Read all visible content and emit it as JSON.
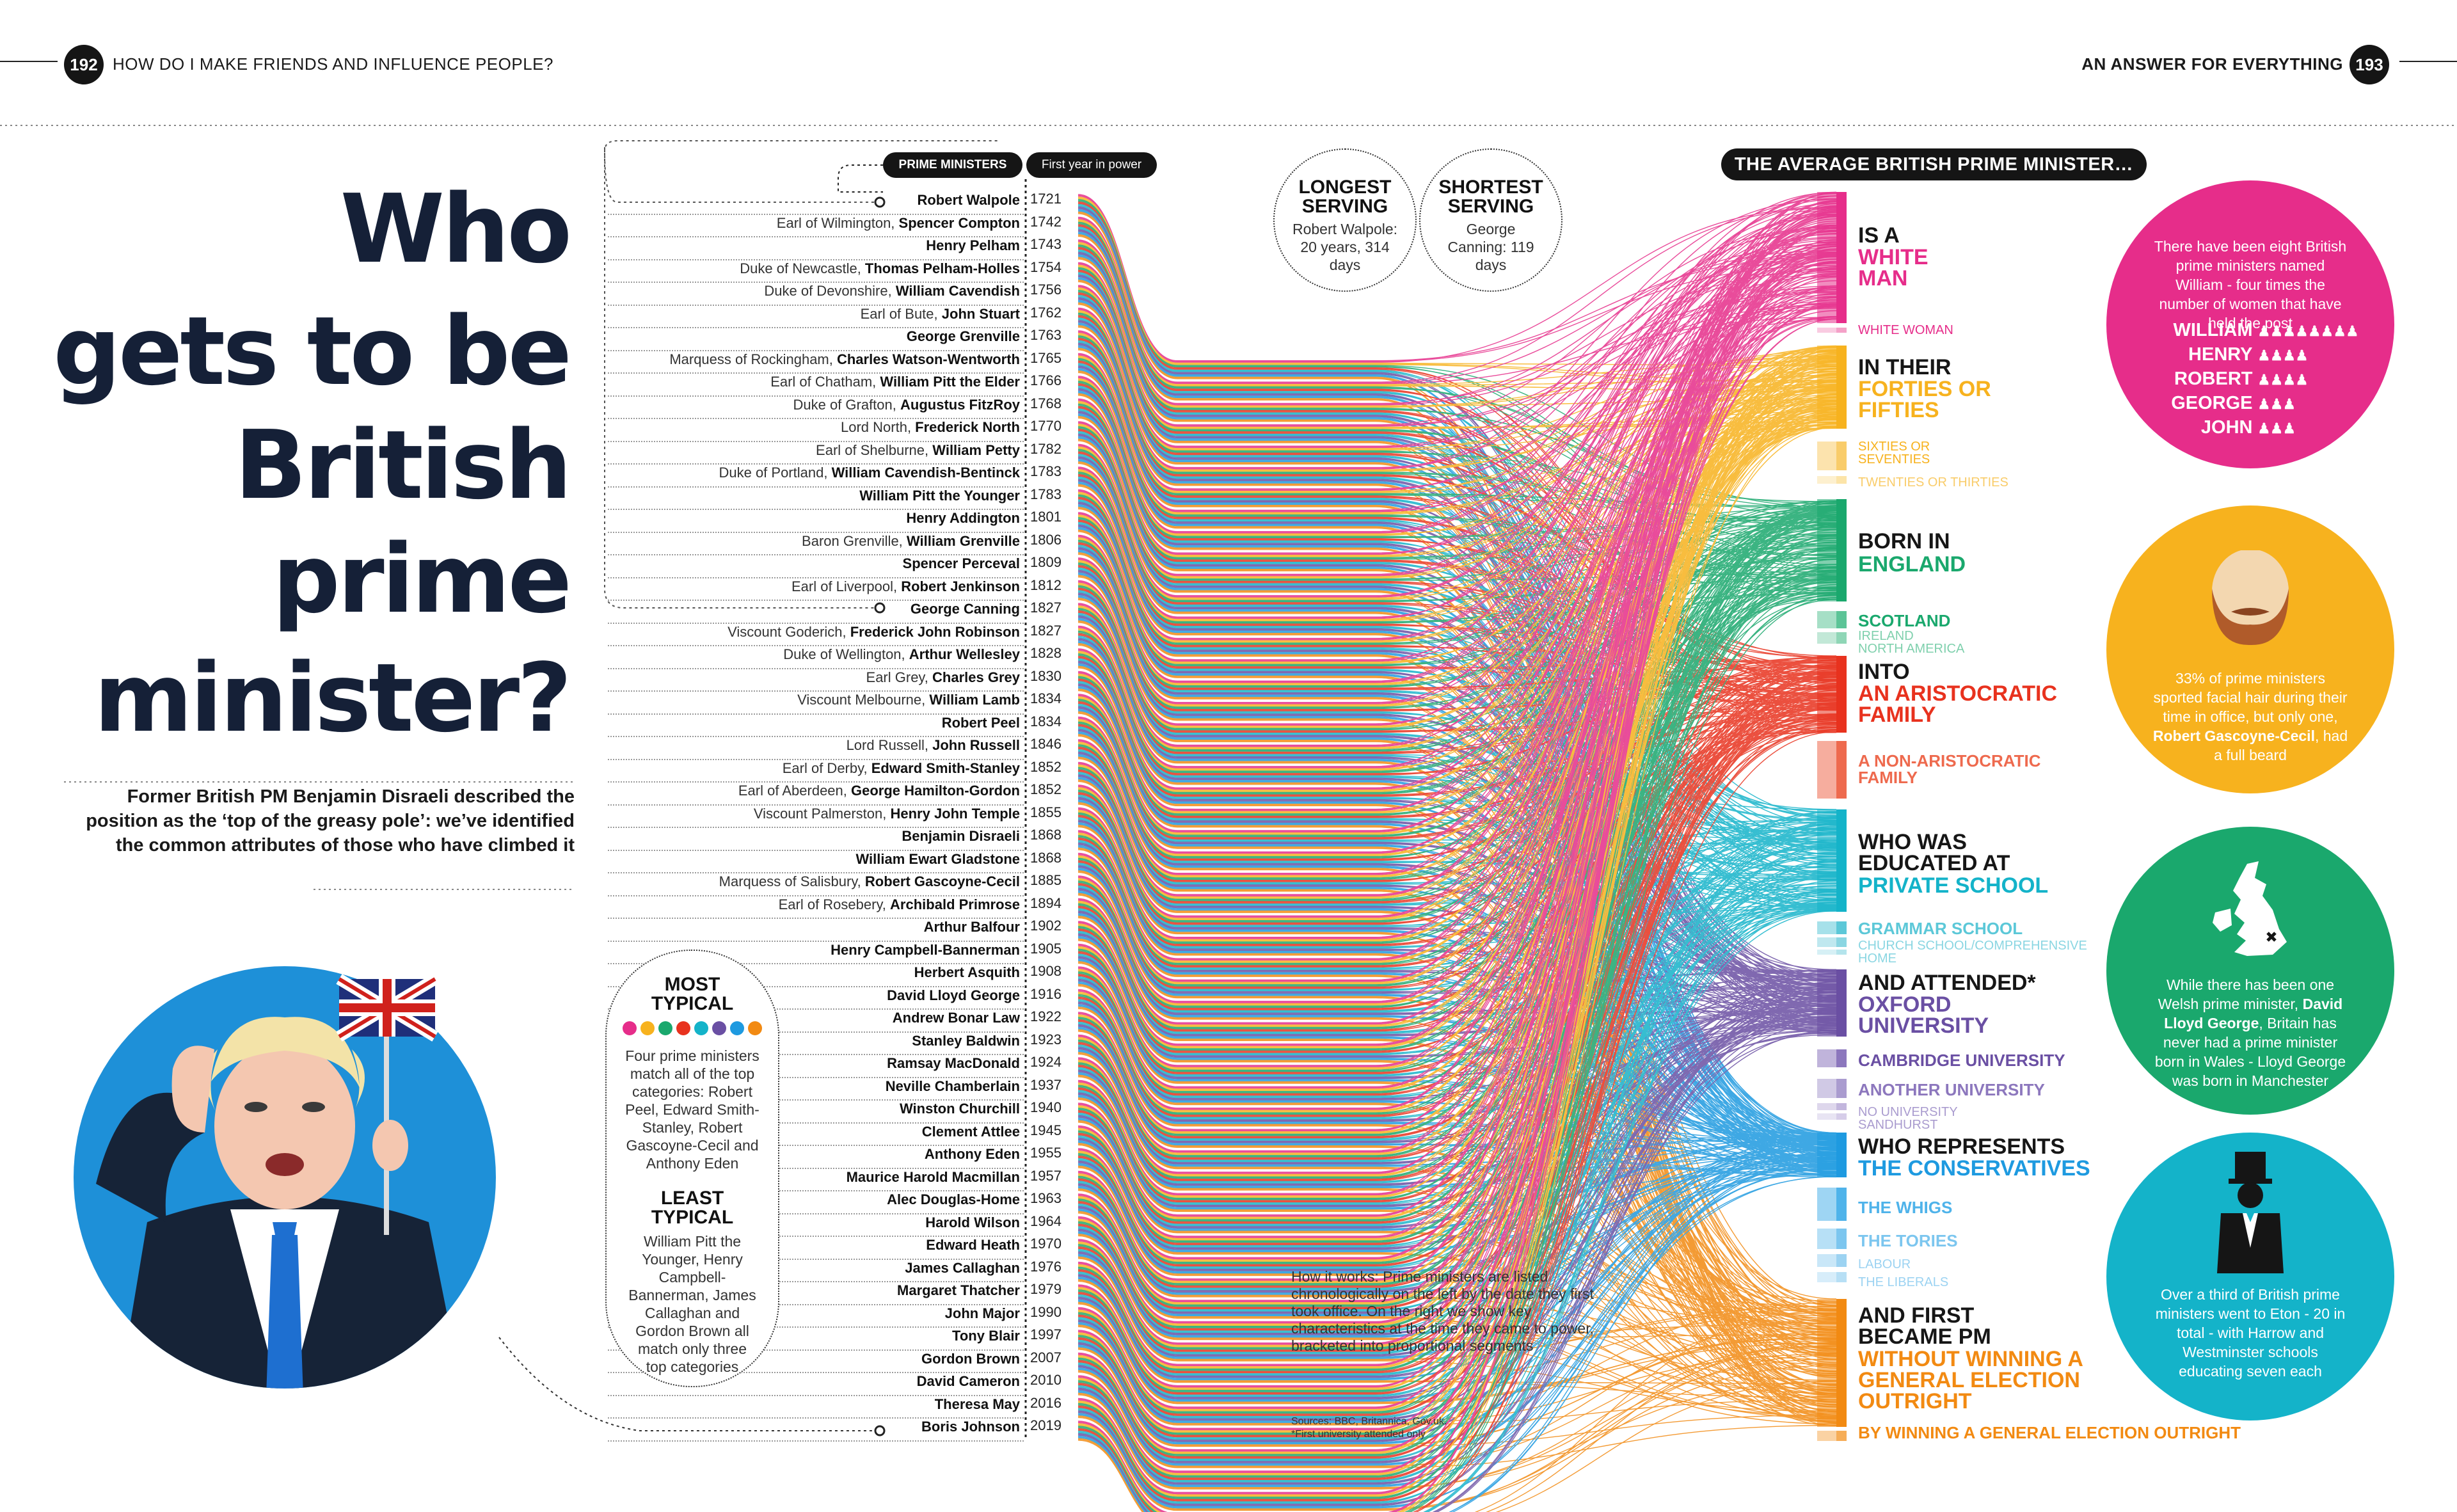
{
  "header": {
    "left_page": "192",
    "left_title": "HOW DO I MAKE FRIENDS AND INFLUENCE PEOPLE?",
    "right_title_plain": "AN ANSWER FOR",
    "right_title_bold": "EVERYTHING",
    "right_page": "193"
  },
  "title": {
    "lines": [
      "Who",
      "gets to be",
      "British",
      "prime",
      "minister?"
    ],
    "intro": "Former British PM Benjamin Disraeli described the position as the ‘top of the greasy pole’: we’ve identified the common attributes of those who have climbed it"
  },
  "list": {
    "header_label": "PRIME MINISTERS",
    "header_year": "First year in power",
    "pms": [
      {
        "prefix": "",
        "name": "Robert Walpole",
        "year": "1721"
      },
      {
        "prefix": "Earl of Wilmington,",
        "name": "Spencer Compton",
        "year": "1742"
      },
      {
        "prefix": "",
        "name": "Henry Pelham",
        "year": "1743"
      },
      {
        "prefix": "Duke of Newcastle,",
        "name": "Thomas Pelham-Holles",
        "year": "1754"
      },
      {
        "prefix": "Duke of Devonshire,",
        "name": "William Cavendish",
        "year": "1756"
      },
      {
        "prefix": "Earl of Bute,",
        "name": "John Stuart",
        "year": "1762"
      },
      {
        "prefix": "",
        "name": "George Grenville",
        "year": "1763"
      },
      {
        "prefix": "Marquess of Rockingham,",
        "name": "Charles Watson-Wentworth",
        "year": "1765"
      },
      {
        "prefix": "Earl of Chatham,",
        "name": "William Pitt the Elder",
        "year": "1766"
      },
      {
        "prefix": "Duke of Grafton,",
        "name": "Augustus FitzRoy",
        "year": "1768"
      },
      {
        "prefix": "Lord North,",
        "name": "Frederick North",
        "year": "1770"
      },
      {
        "prefix": "Earl of Shelburne,",
        "name": "William Petty",
        "year": "1782"
      },
      {
        "prefix": "Duke of Portland,",
        "name": "William Cavendish-Bentinck",
        "year": "1783"
      },
      {
        "prefix": "",
        "name": "William Pitt the Younger",
        "year": "1783"
      },
      {
        "prefix": "",
        "name": "Henry Addington",
        "year": "1801"
      },
      {
        "prefix": "Baron Grenville,",
        "name": "William Grenville",
        "year": "1806"
      },
      {
        "prefix": "",
        "name": "Spencer Perceval",
        "year": "1809"
      },
      {
        "prefix": "Earl of Liverpool,",
        "name": "Robert Jenkinson",
        "year": "1812"
      },
      {
        "prefix": "",
        "name": "George Canning",
        "year": "1827"
      },
      {
        "prefix": "Viscount Goderich,",
        "name": "Frederick John Robinson",
        "year": "1827"
      },
      {
        "prefix": "Duke of Wellington,",
        "name": "Arthur Wellesley",
        "year": "1828"
      },
      {
        "prefix": "Earl Grey,",
        "name": "Charles Grey",
        "year": "1830"
      },
      {
        "prefix": "Viscount Melbourne,",
        "name": "William Lamb",
        "year": "1834"
      },
      {
        "prefix": "",
        "name": "Robert Peel",
        "year": "1834"
      },
      {
        "prefix": "Lord Russell,",
        "name": "John Russell",
        "year": "1846"
      },
      {
        "prefix": "Earl of Derby,",
        "name": "Edward Smith-Stanley",
        "year": "1852"
      },
      {
        "prefix": "Earl of Aberdeen,",
        "name": "George Hamilton-Gordon",
        "year": "1852"
      },
      {
        "prefix": "Viscount Palmerston,",
        "name": "Henry John Temple",
        "year": "1855"
      },
      {
        "prefix": "",
        "name": "Benjamin Disraeli",
        "year": "1868"
      },
      {
        "prefix": "",
        "name": "William Ewart Gladstone",
        "year": "1868"
      },
      {
        "prefix": "Marquess of Salisbury,",
        "name": "Robert Gascoyne-Cecil",
        "year": "1885"
      },
      {
        "prefix": "Earl of Rosebery,",
        "name": "Archibald Primrose",
        "year": "1894"
      },
      {
        "prefix": "",
        "name": "Arthur Balfour",
        "year": "1902"
      },
      {
        "prefix": "",
        "name": "Henry Campbell-Bannerman",
        "year": "1905"
      },
      {
        "prefix": "",
        "name": "Herbert Asquith",
        "year": "1908"
      },
      {
        "prefix": "",
        "name": "David Lloyd George",
        "year": "1916"
      },
      {
        "prefix": "",
        "name": "Andrew Bonar Law",
        "year": "1922"
      },
      {
        "prefix": "",
        "name": "Stanley Baldwin",
        "year": "1923"
      },
      {
        "prefix": "",
        "name": "Ramsay MacDonald",
        "year": "1924"
      },
      {
        "prefix": "",
        "name": "Neville Chamberlain",
        "year": "1937"
      },
      {
        "prefix": "",
        "name": "Winston Churchill",
        "year": "1940"
      },
      {
        "prefix": "",
        "name": "Clement Attlee",
        "year": "1945"
      },
      {
        "prefix": "",
        "name": "Anthony Eden",
        "year": "1955"
      },
      {
        "prefix": "",
        "name": "Maurice Harold Macmillan",
        "year": "1957"
      },
      {
        "prefix": "",
        "name": "Alec Douglas-Home",
        "year": "1963"
      },
      {
        "prefix": "",
        "name": "Harold Wilson",
        "year": "1964"
      },
      {
        "prefix": "",
        "name": "Edward Heath",
        "year": "1970"
      },
      {
        "prefix": "",
        "name": "James Callaghan",
        "year": "1976"
      },
      {
        "prefix": "",
        "name": "Margaret Thatcher",
        "year": "1979"
      },
      {
        "prefix": "",
        "name": "John Major",
        "year": "1990"
      },
      {
        "prefix": "",
        "name": "Tony Blair",
        "year": "1997"
      },
      {
        "prefix": "",
        "name": "Gordon Brown",
        "year": "2007"
      },
      {
        "prefix": "",
        "name": "David Cameron",
        "year": "2010"
      },
      {
        "prefix": "",
        "name": "Theresa May",
        "year": "2016"
      },
      {
        "prefix": "",
        "name": "Boris Johnson",
        "year": "2019"
      }
    ]
  },
  "longest": {
    "heading": "LONGEST SERVING",
    "text": "Robert Walpole: 20 years, 314 days"
  },
  "shortest": {
    "heading": "SHORTEST SERVING",
    "text": "George Canning: 119 days"
  },
  "most_typical": {
    "heading": "MOST TYPICAL",
    "text": "Four prime ministers match all of the top categories: Robert Peel, Edward Smith-Stanley, Robert Gascoyne-Cecil and Anthony Eden"
  },
  "least_typical": {
    "heading": "LEAST TYPICAL",
    "text": "William Pitt the Younger, Henry Campbell-Bannerman, James Callaghan and Gordon Brown all match only three top categories"
  },
  "how_it_works": "How it works: Prime ministers are listed chronologically on the left by the date they first took office. On the right we show key characteristics at the time they came to power, bracketed into proportional segments",
  "sources": "Sources: BBC, Britannica, Gov.uk.",
  "footnote": "*First university attended only",
  "average_title": "THE AVERAGE BRITISH PRIME MINISTER…",
  "categories": {
    "gender": {
      "lead": "IS A",
      "main": "WHITE MAN",
      "alt": "WHITE WOMAN",
      "color": "#e62d8a"
    },
    "age": {
      "lead": "IN THEIR",
      "main": "FORTIES OR FIFTIES",
      "alt1": "SIXTIES OR SEVENTIES",
      "alt2": "TWENTIES OR THIRTIES",
      "color": "#f7b21e"
    },
    "birth": {
      "lead": "BORN IN",
      "main": "ENGLAND",
      "alt1": "SCOTLAND",
      "alt2": "IRELAND",
      "alt3": "NORTH AMERICA",
      "color": "#1aa86d"
    },
    "family": {
      "lead": "INTO",
      "main": "AN ARISTOCRATIC FAMILY",
      "alt": "A NON-ARISTOCRATIC FAMILY",
      "color": "#e8321e"
    },
    "school": {
      "lead": "WHO WAS EDUCATED AT",
      "main": "PRIVATE SCHOOL",
      "alt1": "GRAMMAR SCHOOL",
      "alt2": "CHURCH SCHOOL/COMPREHENSIVE",
      "alt3": "HOME",
      "color": "#14b3c9"
    },
    "uni": {
      "lead": "AND ATTENDED*",
      "main": "OXFORD UNIVERSITY",
      "alt1": "CAMBRIDGE UNIVERSITY",
      "alt2": "ANOTHER UNIVERSITY",
      "alt3": "NO UNIVERSITY",
      "alt4": "SANDHURST",
      "color": "#6a4fa3"
    },
    "party": {
      "lead": "WHO REPRESENTS",
      "main": "THE CONSERVATIVES",
      "alt1": "THE WHIGS",
      "alt2": "THE TORIES",
      "alt3": "LABOUR",
      "alt4": "THE LIBERALS",
      "color": "#1e9ae0"
    },
    "election": {
      "lead": "AND FIRST BECAME PM",
      "main": "WITHOUT WINNING A GENERAL ELECTION OUTRIGHT",
      "alt": "BY WINNING A GENERAL ELECTION OUTRIGHT",
      "color": "#f28a12"
    }
  },
  "facts": {
    "names": {
      "text": "There have been eight British prime ministers named William - four times the number of women that have held the post",
      "rows": [
        {
          "name": "WILLIAM",
          "count": 8
        },
        {
          "name": "HENRY",
          "count": 4
        },
        {
          "name": "ROBERT",
          "count": 4
        },
        {
          "name": "GEORGE",
          "count": 3
        },
        {
          "name": "JOHN",
          "count": 3
        }
      ],
      "color": "#e62d8a"
    },
    "beard": {
      "text_a": "33% of prime ministers sported facial hair during their time in office, but only one,",
      "text_b": "Robert Gascoyne-Cecil",
      "text_c": ", had a full beard",
      "color": "#f7b21e"
    },
    "wales": {
      "text_a": "While there has been one Welsh prime minister,",
      "text_b": "David Lloyd George",
      "text_c": ", Britain has never had a prime minister born in Wales - Lloyd George was born in Manchester",
      "color": "#1aa86d"
    },
    "eton": {
      "text": "Over a third of British prime ministers went to Eton - 20 in total - with Harrow and Westminster schools educating seven each",
      "color": "#14b3c9"
    }
  },
  "dot_colors": [
    "#e62d8a",
    "#f7b21e",
    "#1aa86d",
    "#e8321e",
    "#14b3c9",
    "#6a4fa3",
    "#1e9ae0",
    "#f28a12"
  ]
}
